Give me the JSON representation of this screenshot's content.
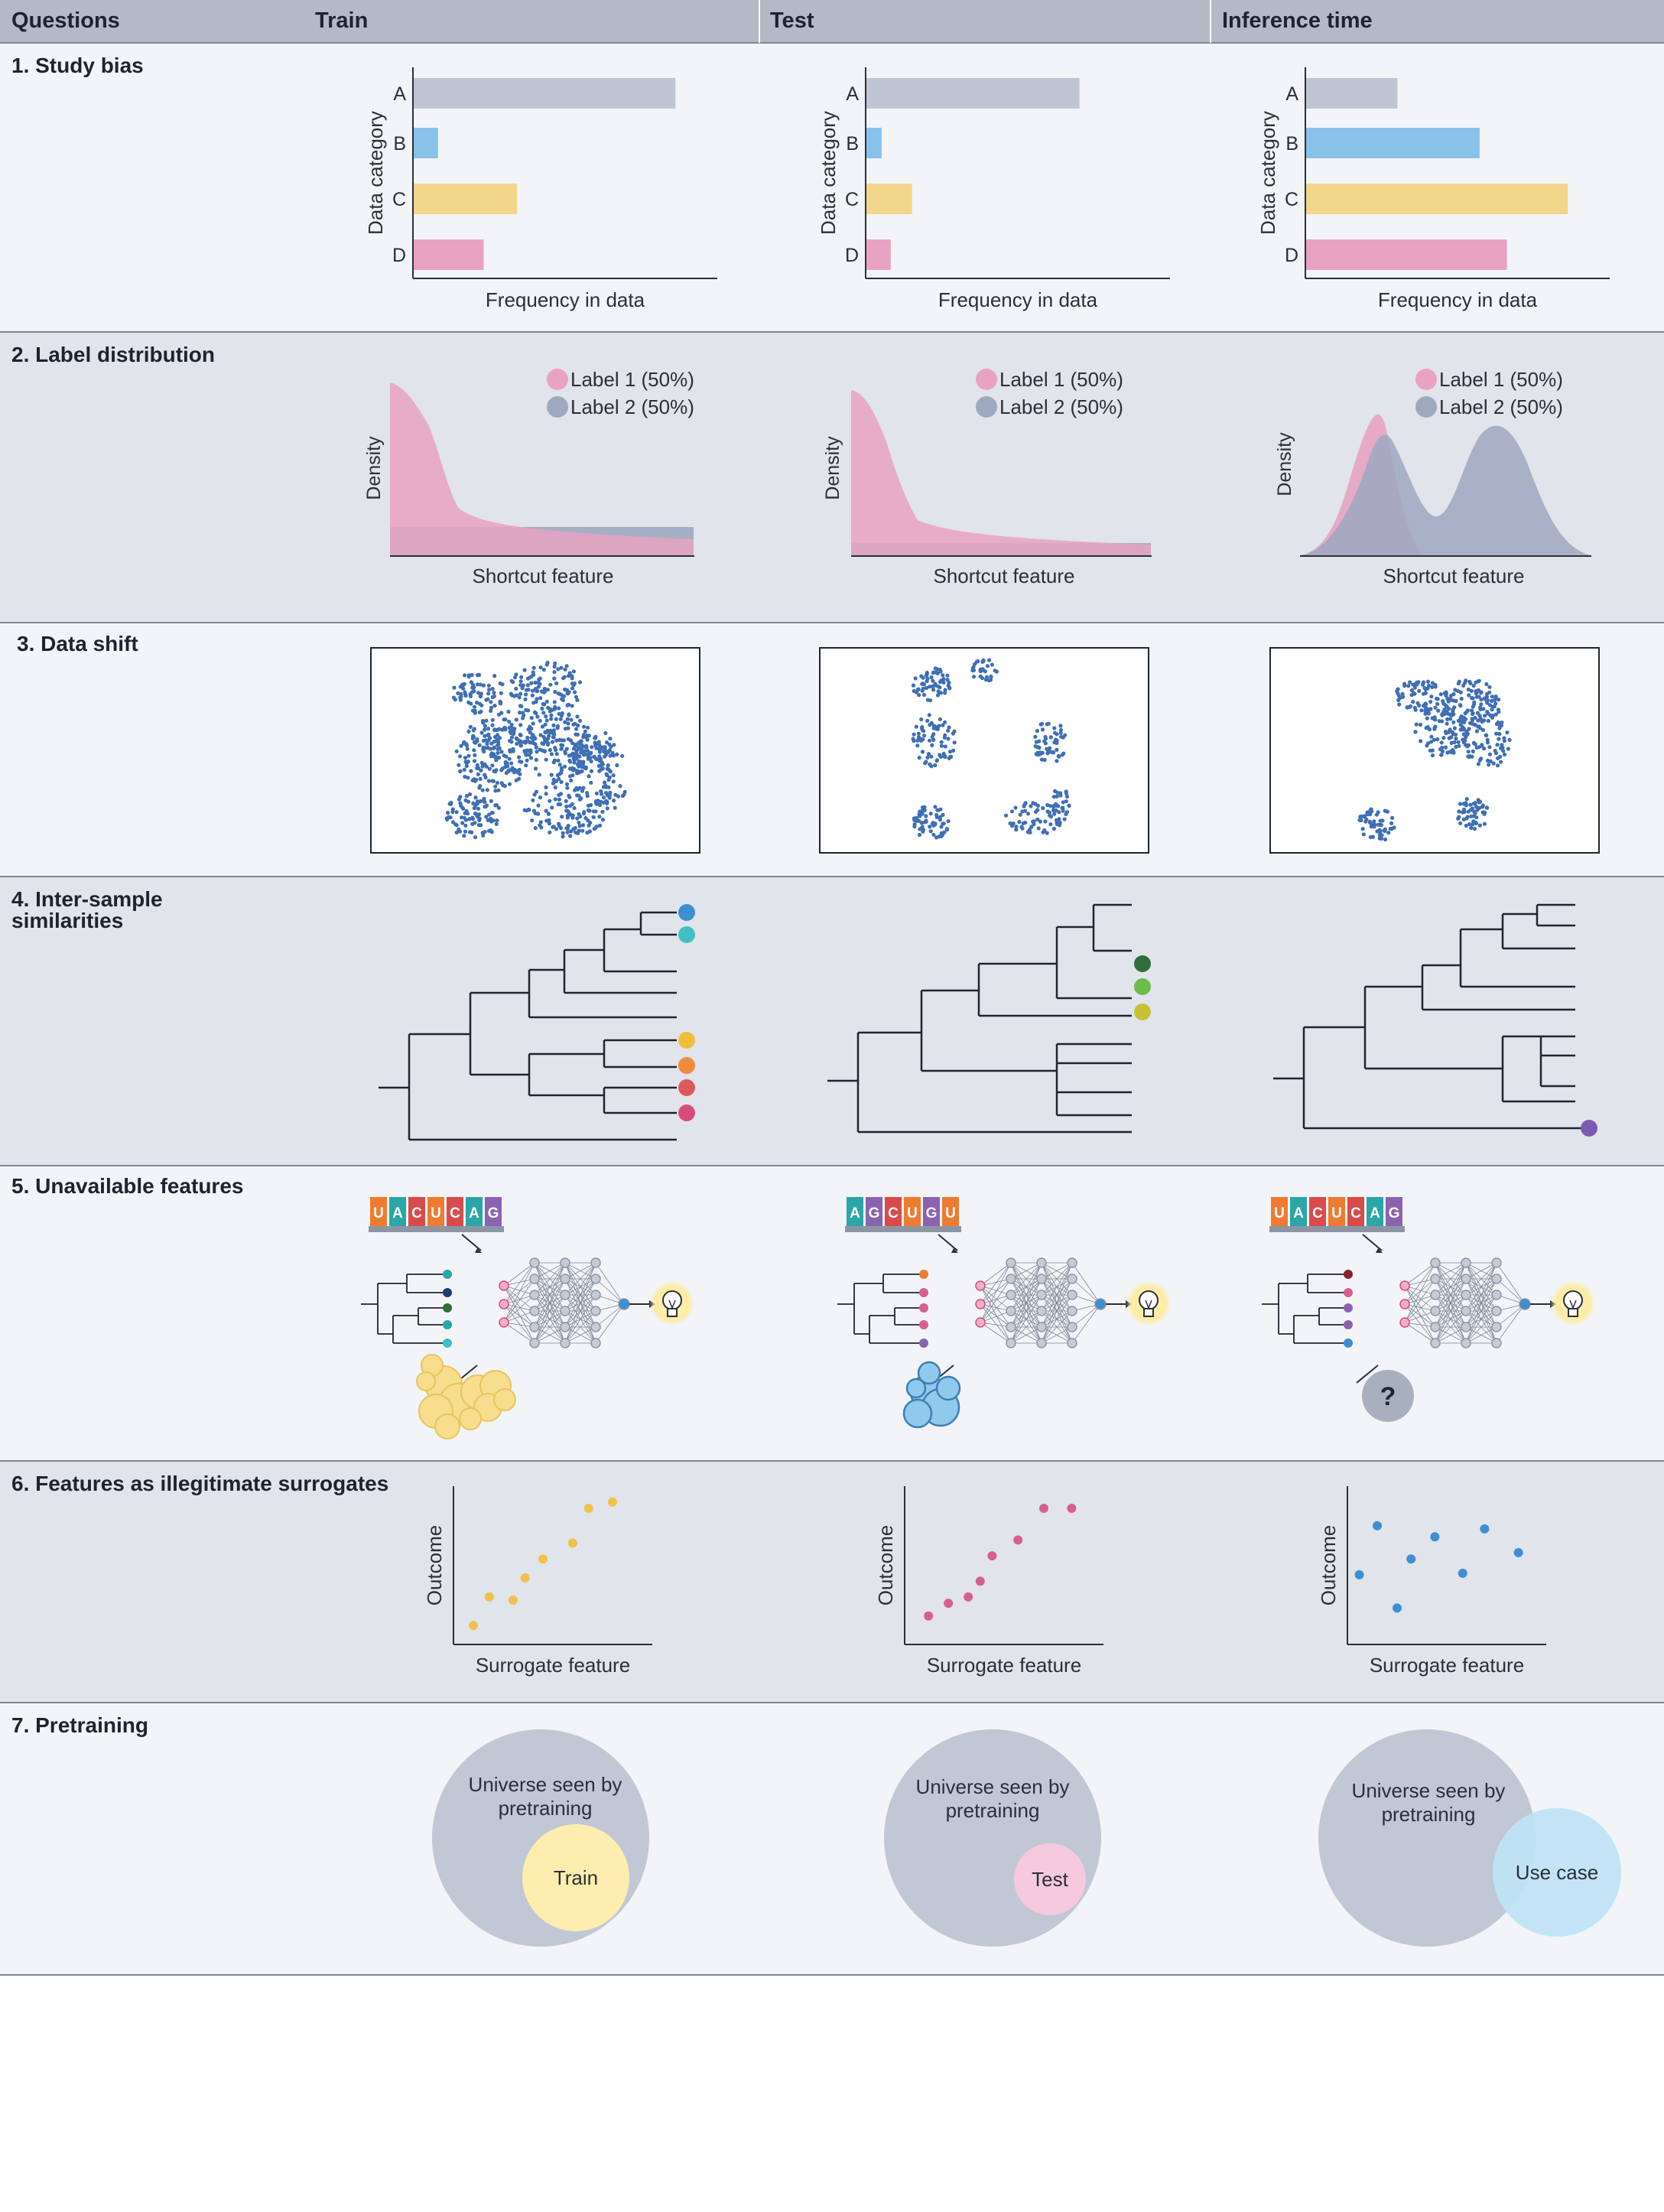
{
  "header": {
    "questions": "Questions",
    "train": "Train",
    "test": "Test",
    "inference": "Inference time"
  },
  "rows": {
    "r1": "1.  Study bias",
    "r2": "2.  Label distribution",
    "r3": "3. Data shift",
    "r4_line1": "4. Inter-sample",
    "r4_line2": "similarities",
    "r5": "5. Unavailable features",
    "r6": "6. Features as illegitimate surrogates",
    "r7": "7. Pretraining"
  },
  "study_bias": {
    "ylabel": "Data category",
    "xlabel": "Frequency in data",
    "categories": [
      "A",
      "B",
      "C",
      "D"
    ],
    "colors": [
      "#bfc5d3",
      "#88c2e8",
      "#f2d68b",
      "#e8a3c2"
    ],
    "train": [
      0.86,
      0.08,
      0.34,
      0.23
    ],
    "test": [
      0.7,
      0.05,
      0.15,
      0.08
    ],
    "inference": [
      0.3,
      0.57,
      0.86,
      0.66
    ]
  },
  "label_dist": {
    "ylabel": "Density",
    "xlabel": "Shortcut feature",
    "legend": [
      "Label 1 (50%)",
      "Label 2 (50%)"
    ],
    "colors": [
      "#e8a3c2",
      "#9ea8bf"
    ]
  },
  "dendro": {
    "train_dots": [
      "#3d8fd1",
      "#3fc1c2",
      "#efbf3c",
      "#f08a3c",
      "#dd5a5a",
      "#d94b7e"
    ],
    "test_dots": [
      "#2e6e3a",
      "#6bbd4a",
      "#c6c233"
    ],
    "inference_dots": [
      "#7a5bb0"
    ]
  },
  "unavail": {
    "train_seq": [
      "U",
      "A",
      "C",
      "U",
      "C",
      "A",
      "G"
    ],
    "test_seq": [
      "A",
      "G",
      "C",
      "U",
      "G",
      "U"
    ],
    "inference_seq": [
      "U",
      "A",
      "C",
      "U",
      "C",
      "A",
      "G"
    ],
    "train_seq_colors": [
      "#ee7b30",
      "#2aa6a6",
      "#d94b4b",
      "#ee7b30",
      "#d94b4b",
      "#2aa6a6",
      "#8a63b0"
    ],
    "test_seq_colors": [
      "#2aa6a6",
      "#8a63b0",
      "#d94b4b",
      "#ee7b30",
      "#8a63b0",
      "#ee7b30"
    ],
    "missing_symbol": "?"
  },
  "surrogates": {
    "ylabel": "Outcome",
    "xlabel": "Surrogate feature",
    "train_color": "#efc24a",
    "test_color": "#d5608d",
    "inference_color": "#3d8fd1",
    "train": [
      [
        0.1,
        0.12
      ],
      [
        0.18,
        0.3
      ],
      [
        0.3,
        0.28
      ],
      [
        0.36,
        0.42
      ],
      [
        0.45,
        0.54
      ],
      [
        0.6,
        0.64
      ],
      [
        0.68,
        0.86
      ],
      [
        0.8,
        0.9
      ]
    ],
    "test": [
      [
        0.12,
        0.18
      ],
      [
        0.22,
        0.26
      ],
      [
        0.32,
        0.3
      ],
      [
        0.38,
        0.4
      ],
      [
        0.44,
        0.56
      ],
      [
        0.57,
        0.66
      ],
      [
        0.7,
        0.86
      ],
      [
        0.84,
        0.86
      ]
    ],
    "inference": [
      [
        0.06,
        0.44
      ],
      [
        0.15,
        0.75
      ],
      [
        0.25,
        0.23
      ],
      [
        0.32,
        0.54
      ],
      [
        0.44,
        0.68
      ],
      [
        0.58,
        0.45
      ],
      [
        0.69,
        0.73
      ],
      [
        0.86,
        0.58
      ]
    ]
  },
  "pretraining": {
    "universe_label_line1": "Universe seen by",
    "universe_label_line2": "pretraining",
    "train": "Train",
    "test": "Test",
    "use_case": "Use case",
    "colors": {
      "universe": "#c1c7d5",
      "train": "#fdeeb0",
      "test": "#f6c9dc",
      "use_case": "#bfe3f6"
    }
  }
}
